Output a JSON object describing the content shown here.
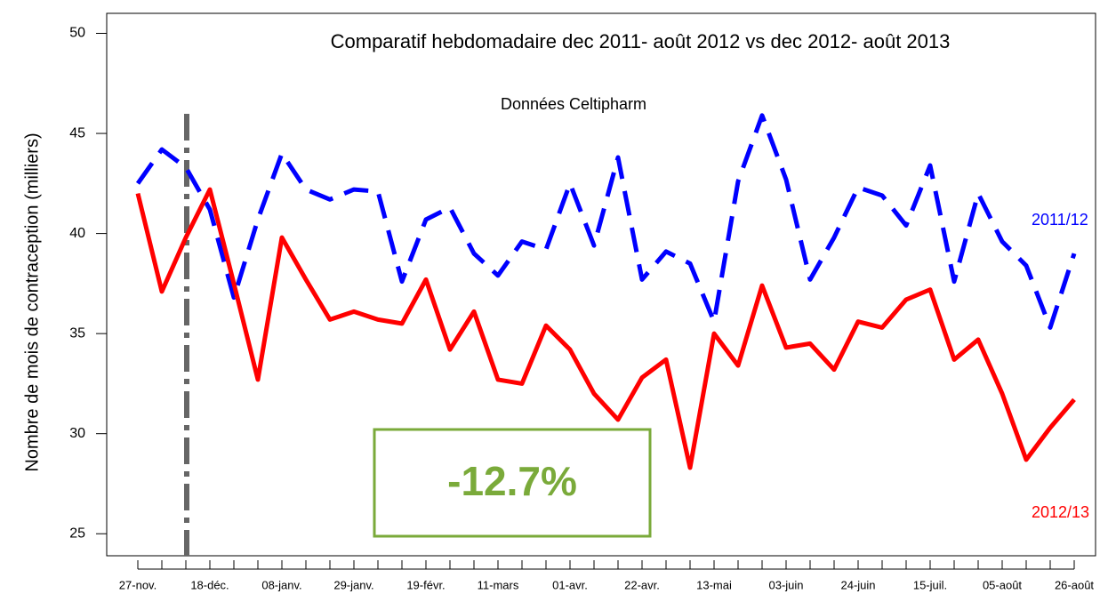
{
  "chart_data": {
    "type": "line",
    "title": "Comparatif hebdomadaire dec 2011- août 2012 vs dec 2012- août 2013",
    "subtitle": "Données Celtipharm",
    "y_label": "Nombre de mois de contraception  (milliers)",
    "annotation": "-12.7%",
    "categories": [
      "27-nov.",
      null,
      null,
      "18-déc.",
      null,
      null,
      "08-janv.",
      null,
      null,
      "29-janv.",
      null,
      null,
      "19-févr.",
      null,
      null,
      "11-mars",
      null,
      null,
      "01-avr.",
      null,
      null,
      "22-avr.",
      null,
      null,
      "13-mai",
      null,
      null,
      "03-juin",
      null,
      null,
      "24-juin",
      null,
      null,
      "15-juil.",
      null,
      null,
      "05-août",
      null,
      null,
      "26-août"
    ],
    "series": [
      {
        "name": "2011/12",
        "color": "#0000ff",
        "dash": true,
        "values": [
          42.5,
          44.2,
          43.3,
          41.2,
          36.8,
          40.7,
          44.0,
          42.2,
          41.7,
          42.2,
          42.1,
          37.6,
          40.7,
          41.3,
          39.0,
          37.9,
          39.6,
          39.2,
          42.5,
          39.4,
          43.8,
          37.7,
          39.1,
          38.5,
          35.6,
          42.6,
          45.9,
          42.7,
          37.7,
          39.8,
          42.3,
          41.9,
          40.4,
          43.4,
          37.6,
          42.0,
          39.6,
          38.4,
          35.3,
          39.0
        ]
      },
      {
        "name": "2012/13",
        "color": "#ff0000",
        "dash": false,
        "values": [
          42.0,
          37.1,
          39.8,
          42.2,
          37.5,
          32.7,
          39.8,
          37.7,
          35.7,
          36.1,
          35.7,
          35.5,
          37.7,
          34.2,
          36.1,
          32.7,
          32.5,
          35.4,
          34.2,
          32.0,
          30.7,
          32.8,
          33.7,
          28.3,
          35.0,
          33.4,
          37.4,
          34.3,
          34.5,
          33.2,
          35.6,
          35.3,
          36.7,
          37.2,
          33.7,
          34.7,
          32.0,
          28.7,
          30.3,
          31.7
        ]
      }
    ],
    "ylim": [
      23.9,
      51
    ],
    "yticks": [
      25,
      30,
      35,
      40,
      45,
      50
    ],
    "grid": false
  }
}
